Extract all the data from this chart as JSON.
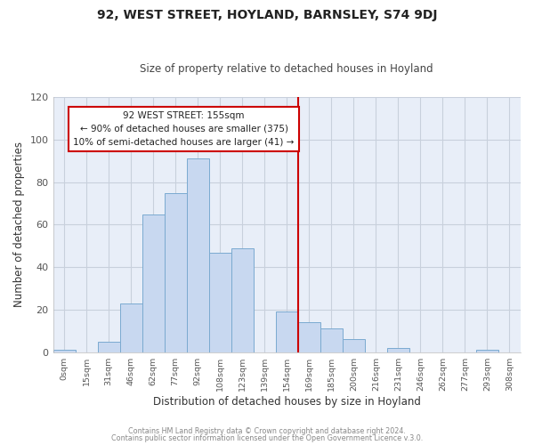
{
  "title": "92, WEST STREET, HOYLAND, BARNSLEY, S74 9DJ",
  "subtitle": "Size of property relative to detached houses in Hoyland",
  "xlabel": "Distribution of detached houses by size in Hoyland",
  "ylabel": "Number of detached properties",
  "bar_labels": [
    "0sqm",
    "15sqm",
    "31sqm",
    "46sqm",
    "62sqm",
    "77sqm",
    "92sqm",
    "108sqm",
    "123sqm",
    "139sqm",
    "154sqm",
    "169sqm",
    "185sqm",
    "200sqm",
    "216sqm",
    "231sqm",
    "246sqm",
    "262sqm",
    "277sqm",
    "293sqm",
    "308sqm"
  ],
  "bar_values": [
    1,
    0,
    5,
    23,
    65,
    75,
    91,
    47,
    49,
    0,
    19,
    14,
    11,
    6,
    0,
    2,
    0,
    0,
    0,
    1,
    0
  ],
  "bar_color": "#c8d8f0",
  "bar_edge_color": "#7baad0",
  "vline_color": "#cc0000",
  "annotation_line1": "92 WEST STREET: 155sqm",
  "annotation_line2": "← 90% of detached houses are smaller (375)",
  "annotation_line3": "10% of semi-detached houses are larger (41) →",
  "annotation_box_edgecolor": "#cc0000",
  "annotation_box_facecolor": "#ffffff",
  "ylim": [
    0,
    120
  ],
  "yticks": [
    0,
    20,
    40,
    60,
    80,
    100,
    120
  ],
  "footer1": "Contains HM Land Registry data © Crown copyright and database right 2024.",
  "footer2": "Contains public sector information licensed under the Open Government Licence v.3.0.",
  "plot_bg_color": "#e8eef8",
  "fig_bg_color": "#ffffff",
  "grid_color": "#c8d0dc",
  "title_color": "#222222",
  "subtitle_color": "#444444",
  "tick_color": "#555555",
  "label_color": "#333333",
  "footer_color": "#888888"
}
